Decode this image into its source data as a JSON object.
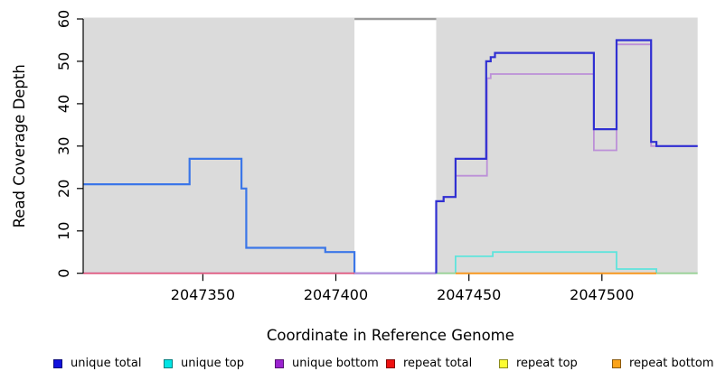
{
  "chart_data": {
    "type": "line",
    "subtype": "step-coverage-plot",
    "title": "",
    "xlabel": "Coordinate in Reference Genome",
    "ylabel": "Read Coverage Depth",
    "xlim": [
      2047305,
      2047536
    ],
    "ylim": [
      0,
      60
    ],
    "x_ticks": [
      2047350,
      2047400,
      2047450,
      2047500
    ],
    "y_ticks": [
      0,
      10,
      20,
      30,
      40,
      50,
      60
    ],
    "grid": false,
    "legend_position": "bottom",
    "plot_background_color": "#DBDBDB",
    "background_regions": [
      {
        "x0": 2047305,
        "x1": 2047407,
        "color": "#DBDBDB"
      },
      {
        "x0": 2047437.7,
        "x1": 2047536,
        "color": "#DBDBDB"
      }
    ],
    "masked_region": {
      "x0": 2047407,
      "x1": 2047437.7,
      "fill": "#FFFFFF",
      "top_line_y": 60,
      "top_line_color": "#9A9A9A"
    },
    "series": [
      {
        "name": "unique total",
        "legend_color": "#1111DD",
        "segments": [
          {
            "order": 1,
            "color": "#3B76E8",
            "points": [
              [
                2047305,
                21
              ],
              [
                2047345,
                27
              ],
              [
                2047364.5,
                20
              ],
              [
                2047366.3,
                6
              ],
              [
                2047396,
                5
              ],
              [
                2047407,
                0
              ],
              [
                2047437.7,
                0
              ]
            ]
          },
          {
            "order": 7,
            "color": "#3030D2",
            "points": [
              [
                2047437.7,
                0
              ],
              [
                2047437.7,
                17
              ],
              [
                2047440.5,
                18
              ],
              [
                2047445,
                27
              ],
              [
                2047456.5,
                50
              ],
              [
                2047458.2,
                51
              ],
              [
                2047459.8,
                52
              ],
              [
                2047497,
                34
              ],
              [
                2047505.5,
                55
              ],
              [
                2047518.5,
                31
              ],
              [
                2047520.5,
                30
              ],
              [
                2047536,
                30
              ]
            ]
          }
        ]
      },
      {
        "name": "unique top",
        "legend_color": "#00E5E5",
        "segments": [
          {
            "order": 4,
            "color": "#5FE4DC",
            "points": [
              [
                2047445,
                0
              ],
              [
                2047445,
                4
              ],
              [
                2047459,
                5
              ],
              [
                2047505.5,
                1
              ],
              [
                2047520.5,
                1
              ],
              [
                2047520.5,
                0
              ]
            ]
          }
        ]
      },
      {
        "name": "unique bottom",
        "legend_color": "#9B22D0",
        "segments": [
          {
            "order": 2,
            "color": "#BC90D8",
            "points": [
              [
                2047305,
                0
              ],
              [
                2047437.7,
                17
              ],
              [
                2047440.5,
                18
              ],
              [
                2047445,
                23
              ],
              [
                2047456.8,
                46
              ],
              [
                2047458.2,
                47
              ],
              [
                2047497,
                29
              ],
              [
                2047505.5,
                54
              ],
              [
                2047518.5,
                30
              ],
              [
                2047536,
                30
              ]
            ]
          }
        ]
      },
      {
        "name": "repeat total",
        "legend_color": "#EE1111",
        "segments": [
          {
            "order": 3,
            "color": "#E15578",
            "points": [
              [
                2047305,
                0
              ],
              [
                2047407,
                0
              ]
            ]
          }
        ]
      },
      {
        "name": "repeat top",
        "legend_color": "#FCFC33",
        "segments": [
          {
            "order": 6,
            "color": "#97D195",
            "points": [
              [
                2047437.7,
                0
              ],
              [
                2047445,
                0
              ]
            ]
          },
          {
            "order": 6.5,
            "color": "#97D195",
            "points": [
              [
                2047520.5,
                0
              ],
              [
                2047536,
                0
              ]
            ]
          }
        ]
      },
      {
        "name": "repeat bottom",
        "legend_color": "#FCA318",
        "segments": [
          {
            "order": 5,
            "color": "#F6961E",
            "points": [
              [
                2047445,
                0
              ],
              [
                2047520.5,
                0
              ]
            ]
          }
        ]
      }
    ]
  },
  "legend": {
    "items": [
      {
        "label": "unique total",
        "color": "#1111DD"
      },
      {
        "label": "unique top",
        "color": "#00E5E5"
      },
      {
        "label": "unique bottom",
        "color": "#9B22D0"
      },
      {
        "label": "repeat total",
        "color": "#EE1111"
      },
      {
        "label": "repeat top",
        "color": "#FCFC33"
      },
      {
        "label": "repeat bottom",
        "color": "#FCA318"
      }
    ]
  }
}
